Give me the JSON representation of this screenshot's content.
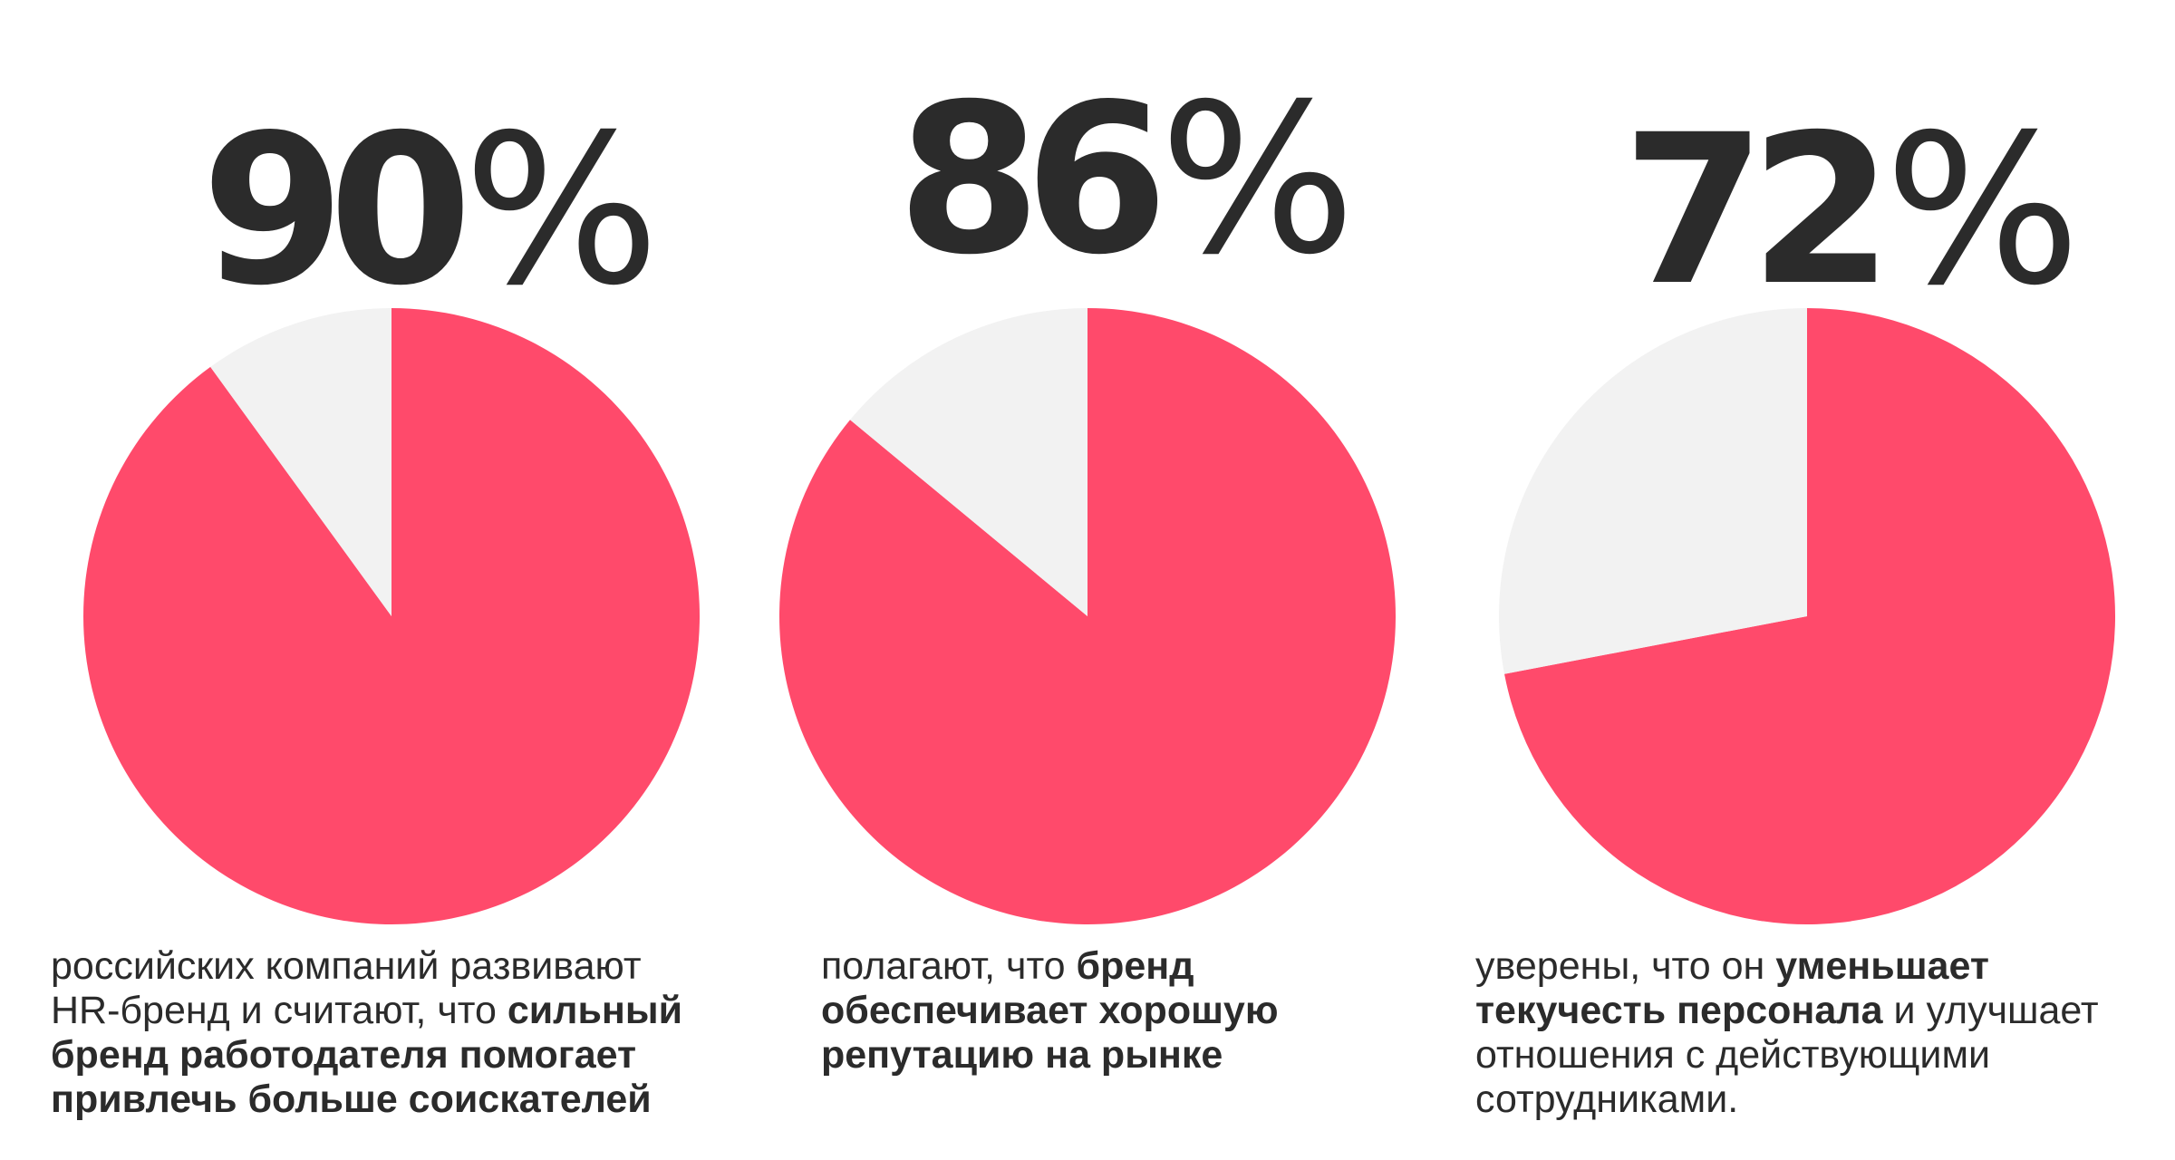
{
  "colors": {
    "accent": "#ff4a6b",
    "remainder": "#f2f2f2",
    "text": "#2b2b2b"
  },
  "chart_data": [
    {
      "type": "pie",
      "headline_value": "90",
      "percent_sign": "%",
      "slices": [
        {
          "value": 90,
          "color": "#ff4a6b"
        },
        {
          "value": 10,
          "color": "#f2f2f2"
        }
      ],
      "caption": [
        {
          "text": "российских компаний развивают HR-бренд и считают, что ",
          "bold": false
        },
        {
          "text": "сильный бренд работодателя помогает привлечь больше соискателей",
          "bold": true
        }
      ]
    },
    {
      "type": "pie",
      "headline_value": "86",
      "percent_sign": "%",
      "slices": [
        {
          "value": 86,
          "color": "#ff4a6b"
        },
        {
          "value": 14,
          "color": "#f2f2f2"
        }
      ],
      "caption": [
        {
          "text": "полагают, что ",
          "bold": false
        },
        {
          "text": "бренд обеспечивает хорошую репутацию на рынке",
          "bold": true
        }
      ]
    },
    {
      "type": "pie",
      "headline_value": "72",
      "percent_sign": "%",
      "slices": [
        {
          "value": 72,
          "color": "#ff4a6b"
        },
        {
          "value": 28,
          "color": "#f2f2f2"
        }
      ],
      "caption": [
        {
          "text": "уверены, что он ",
          "bold": false
        },
        {
          "text": "уменьшает текучесть персонала",
          "bold": true
        },
        {
          "text": " и улучшает отношения с действующими сотрудниками.",
          "bold": false
        }
      ]
    }
  ]
}
